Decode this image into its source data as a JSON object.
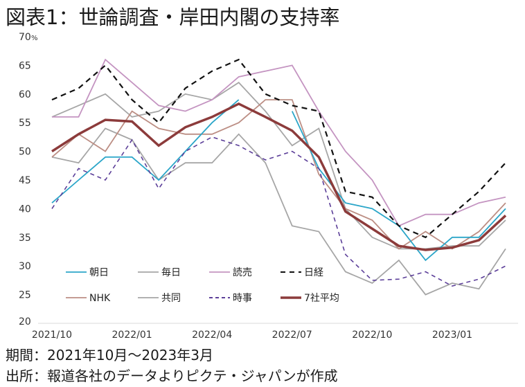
{
  "title": "図表1：世論調査・岸田内閣の支持率",
  "footer": {
    "period": "期間：2021年10月～2023年3月",
    "source": "出所：報道各社のデータよりピクテ・ジャパンが作成"
  },
  "chart_data": {
    "type": "line",
    "title": "図表1：世論調査・岸田内閣の支持率",
    "xlabel": "",
    "ylabel": "",
    "y_unit": "%",
    "ylim": [
      20,
      70
    ],
    "yticks": [
      20,
      25,
      30,
      35,
      40,
      45,
      50,
      55,
      60,
      65,
      70
    ],
    "grid": false,
    "legend_position": "bottom-left inside plot",
    "x": [
      "2021/10",
      "2021/11",
      "2021/12",
      "2022/01",
      "2022/02",
      "2022/03",
      "2022/04",
      "2022/05",
      "2022/06",
      "2022/07",
      "2022/08",
      "2022/09",
      "2022/10",
      "2022/11",
      "2022/12",
      "2023/01",
      "2023/02",
      "2023/03"
    ],
    "xtick_labels": [
      "2021/10",
      "2022/01",
      "2022/04",
      "2022/07",
      "2022/10",
      "2023/01"
    ],
    "series": [
      {
        "name": "朝日",
        "color": "#2BA6C9",
        "style": "solid",
        "values": [
          41,
          45,
          49,
          49,
          45,
          50,
          55,
          59,
          null,
          57,
          47,
          41,
          40,
          37,
          31,
          35,
          35,
          40
        ]
      },
      {
        "name": "毎日",
        "color": "#A6A6A6",
        "style": "solid",
        "values": [
          49,
          48,
          54,
          52,
          45,
          48,
          48,
          53,
          48,
          37,
          36,
          29,
          27,
          31,
          25,
          27,
          26,
          33
        ]
      },
      {
        "name": "読売",
        "color": "#C494C1",
        "style": "solid",
        "values": [
          56,
          56,
          66,
          62,
          58,
          57,
          59,
          63,
          64,
          65,
          57,
          50,
          45,
          37,
          39,
          39,
          41,
          42
        ]
      },
      {
        "name": "日経",
        "color": "#111111",
        "style": "dashed",
        "values": [
          59,
          61,
          65,
          59,
          55,
          61,
          64,
          66,
          60,
          58,
          57,
          43,
          42,
          37,
          35,
          39,
          43,
          48
        ]
      },
      {
        "name": "NHK",
        "color": "#BC8E84",
        "style": "solid",
        "values": [
          49,
          53,
          50,
          57,
          54,
          53,
          53,
          55,
          59,
          59,
          46,
          40,
          38,
          33,
          36,
          33,
          36,
          41
        ]
      },
      {
        "name": "共同",
        "color": "#A6A6A6",
        "style": "solid",
        "values": [
          56,
          58,
          60,
          56,
          57,
          60,
          59,
          62,
          57,
          51,
          54,
          40,
          35,
          33,
          33,
          33.5,
          33.5,
          38
        ]
      },
      {
        "name": "時事",
        "color": "#5C3F99",
        "style": "dashed",
        "values": [
          40,
          47,
          45,
          52,
          43.5,
          50,
          52.5,
          51,
          48.5,
          50,
          47,
          32,
          27.5,
          27.7,
          29,
          26.5,
          27.7,
          30
        ]
      },
      {
        "name": "7社平均",
        "color": "#8C3B3B",
        "style": "bold",
        "values": [
          50,
          53,
          55.5,
          55.2,
          51,
          54.2,
          56,
          58.3,
          56,
          53.6,
          49,
          39.5,
          36.5,
          33.5,
          32.8,
          33.2,
          34.5,
          38.8
        ]
      }
    ]
  }
}
